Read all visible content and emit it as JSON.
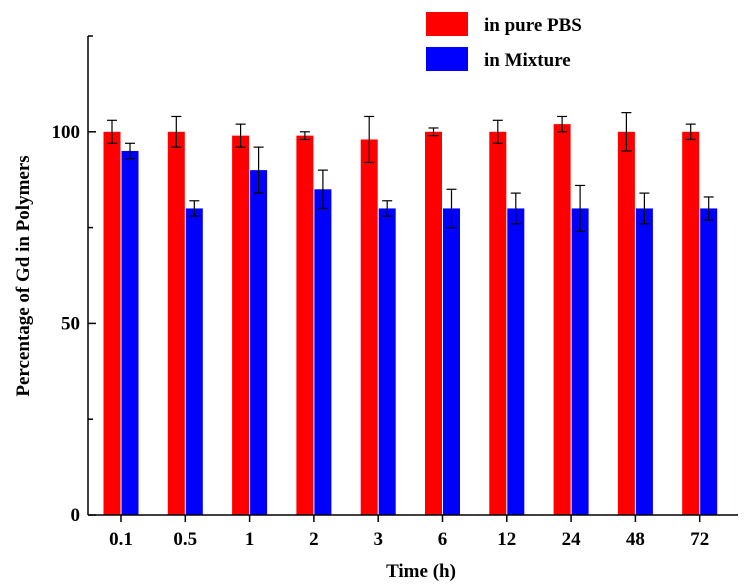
{
  "chart_data": {
    "type": "bar",
    "xlabel": "Time (h)",
    "ylabel": "Percentage of Gd in Polymers",
    "categories": [
      "0.1",
      "0.5",
      "1",
      "2",
      "3",
      "6",
      "12",
      "24",
      "48",
      "72"
    ],
    "ylim": [
      0,
      125
    ],
    "yticks": [
      0,
      50,
      100
    ],
    "grid": false,
    "legend_position": "top-right",
    "series": [
      {
        "name": "in pure PBS",
        "color": "#ff0000",
        "values": [
          100,
          100,
          99,
          99,
          98,
          100,
          100,
          102,
          100,
          100
        ],
        "errors": [
          3,
          4,
          3,
          1,
          6,
          1,
          3,
          2,
          5,
          2
        ]
      },
      {
        "name": "in Mixture",
        "color": "#0000ff",
        "values": [
          95,
          80,
          90,
          85,
          80,
          80,
          80,
          80,
          80,
          80
        ],
        "errors": [
          2,
          2,
          6,
          5,
          2,
          5,
          4,
          6,
          4,
          3
        ]
      }
    ]
  }
}
